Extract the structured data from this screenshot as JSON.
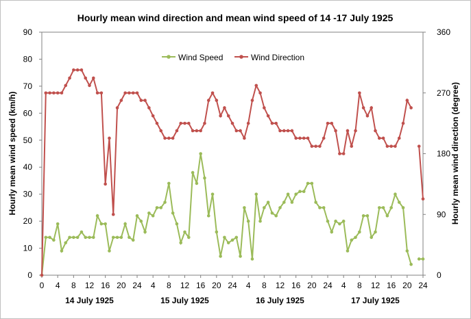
{
  "chart_data": {
    "type": "line",
    "title": "Hourly mean wind direction and mean wind speed of 14 -17 July 1925",
    "ylabel_left": "Hourly mean wind speed (km/h)",
    "ylabel_right": "Hourly mean wind direction (degree)",
    "ylim_left": [
      0,
      90
    ],
    "yticks_left": [
      "0",
      "10",
      "20",
      "30",
      "40",
      "50",
      "60",
      "70",
      "80",
      "90"
    ],
    "ylim_right": [
      0,
      360
    ],
    "yticks_right": [
      "0",
      "90",
      "180",
      "270",
      "360"
    ],
    "x_ticks": [
      "0",
      "4",
      "8",
      "12",
      "16",
      "20",
      "24",
      "4",
      "8",
      "12",
      "16",
      "20",
      "24",
      "4",
      "8",
      "12",
      "16",
      "20",
      "24",
      "4",
      "8",
      "12",
      "16",
      "20",
      "24"
    ],
    "day_labels": [
      "14 July 1925",
      "15 July 1925",
      "16 July 1925",
      "17 July 1925"
    ],
    "grid": false,
    "legend_position": "top-center",
    "series": [
      {
        "name": "Wind Speed",
        "axis": "left",
        "color": "#9bbb59",
        "values": [
          0,
          14,
          14,
          13,
          19,
          9,
          12,
          14,
          14,
          14,
          16,
          14,
          14,
          14,
          22,
          19,
          19,
          9,
          14,
          14,
          14,
          19,
          14,
          13,
          22,
          20,
          16,
          23,
          22,
          25,
          25,
          27,
          34,
          23,
          19,
          12,
          16,
          14,
          38,
          34,
          45,
          36,
          22,
          30,
          16,
          7,
          14,
          12,
          13,
          14,
          7,
          25,
          20,
          6,
          30,
          20,
          25,
          27,
          23,
          22,
          25,
          27,
          30,
          27,
          30,
          31,
          31,
          34,
          34,
          27,
          25,
          25,
          20,
          16,
          20,
          19,
          20,
          9,
          13,
          14,
          16,
          22,
          22,
          14,
          16,
          25,
          25,
          22,
          25,
          30,
          27,
          25,
          9,
          4,
          null,
          6,
          6
        ]
      },
      {
        "name": "Wind Direction",
        "axis": "right",
        "color": "#c0504d",
        "values": [
          0,
          270,
          270,
          270,
          270,
          270,
          281,
          292,
          304,
          304,
          304,
          292,
          281,
          292,
          270,
          270,
          135,
          203,
          90,
          248,
          259,
          270,
          270,
          270,
          270,
          259,
          259,
          248,
          236,
          225,
          214,
          203,
          203,
          203,
          214,
          225,
          225,
          225,
          214,
          214,
          214,
          225,
          259,
          270,
          259,
          236,
          248,
          236,
          225,
          214,
          214,
          203,
          225,
          259,
          281,
          270,
          248,
          236,
          225,
          225,
          214,
          214,
          214,
          214,
          203,
          203,
          203,
          203,
          191,
          191,
          191,
          203,
          225,
          225,
          214,
          180,
          180,
          214,
          191,
          214,
          270,
          248,
          236,
          248,
          214,
          203,
          203,
          191,
          191,
          191,
          203,
          225,
          259,
          248,
          null,
          191,
          113
        ]
      }
    ]
  }
}
